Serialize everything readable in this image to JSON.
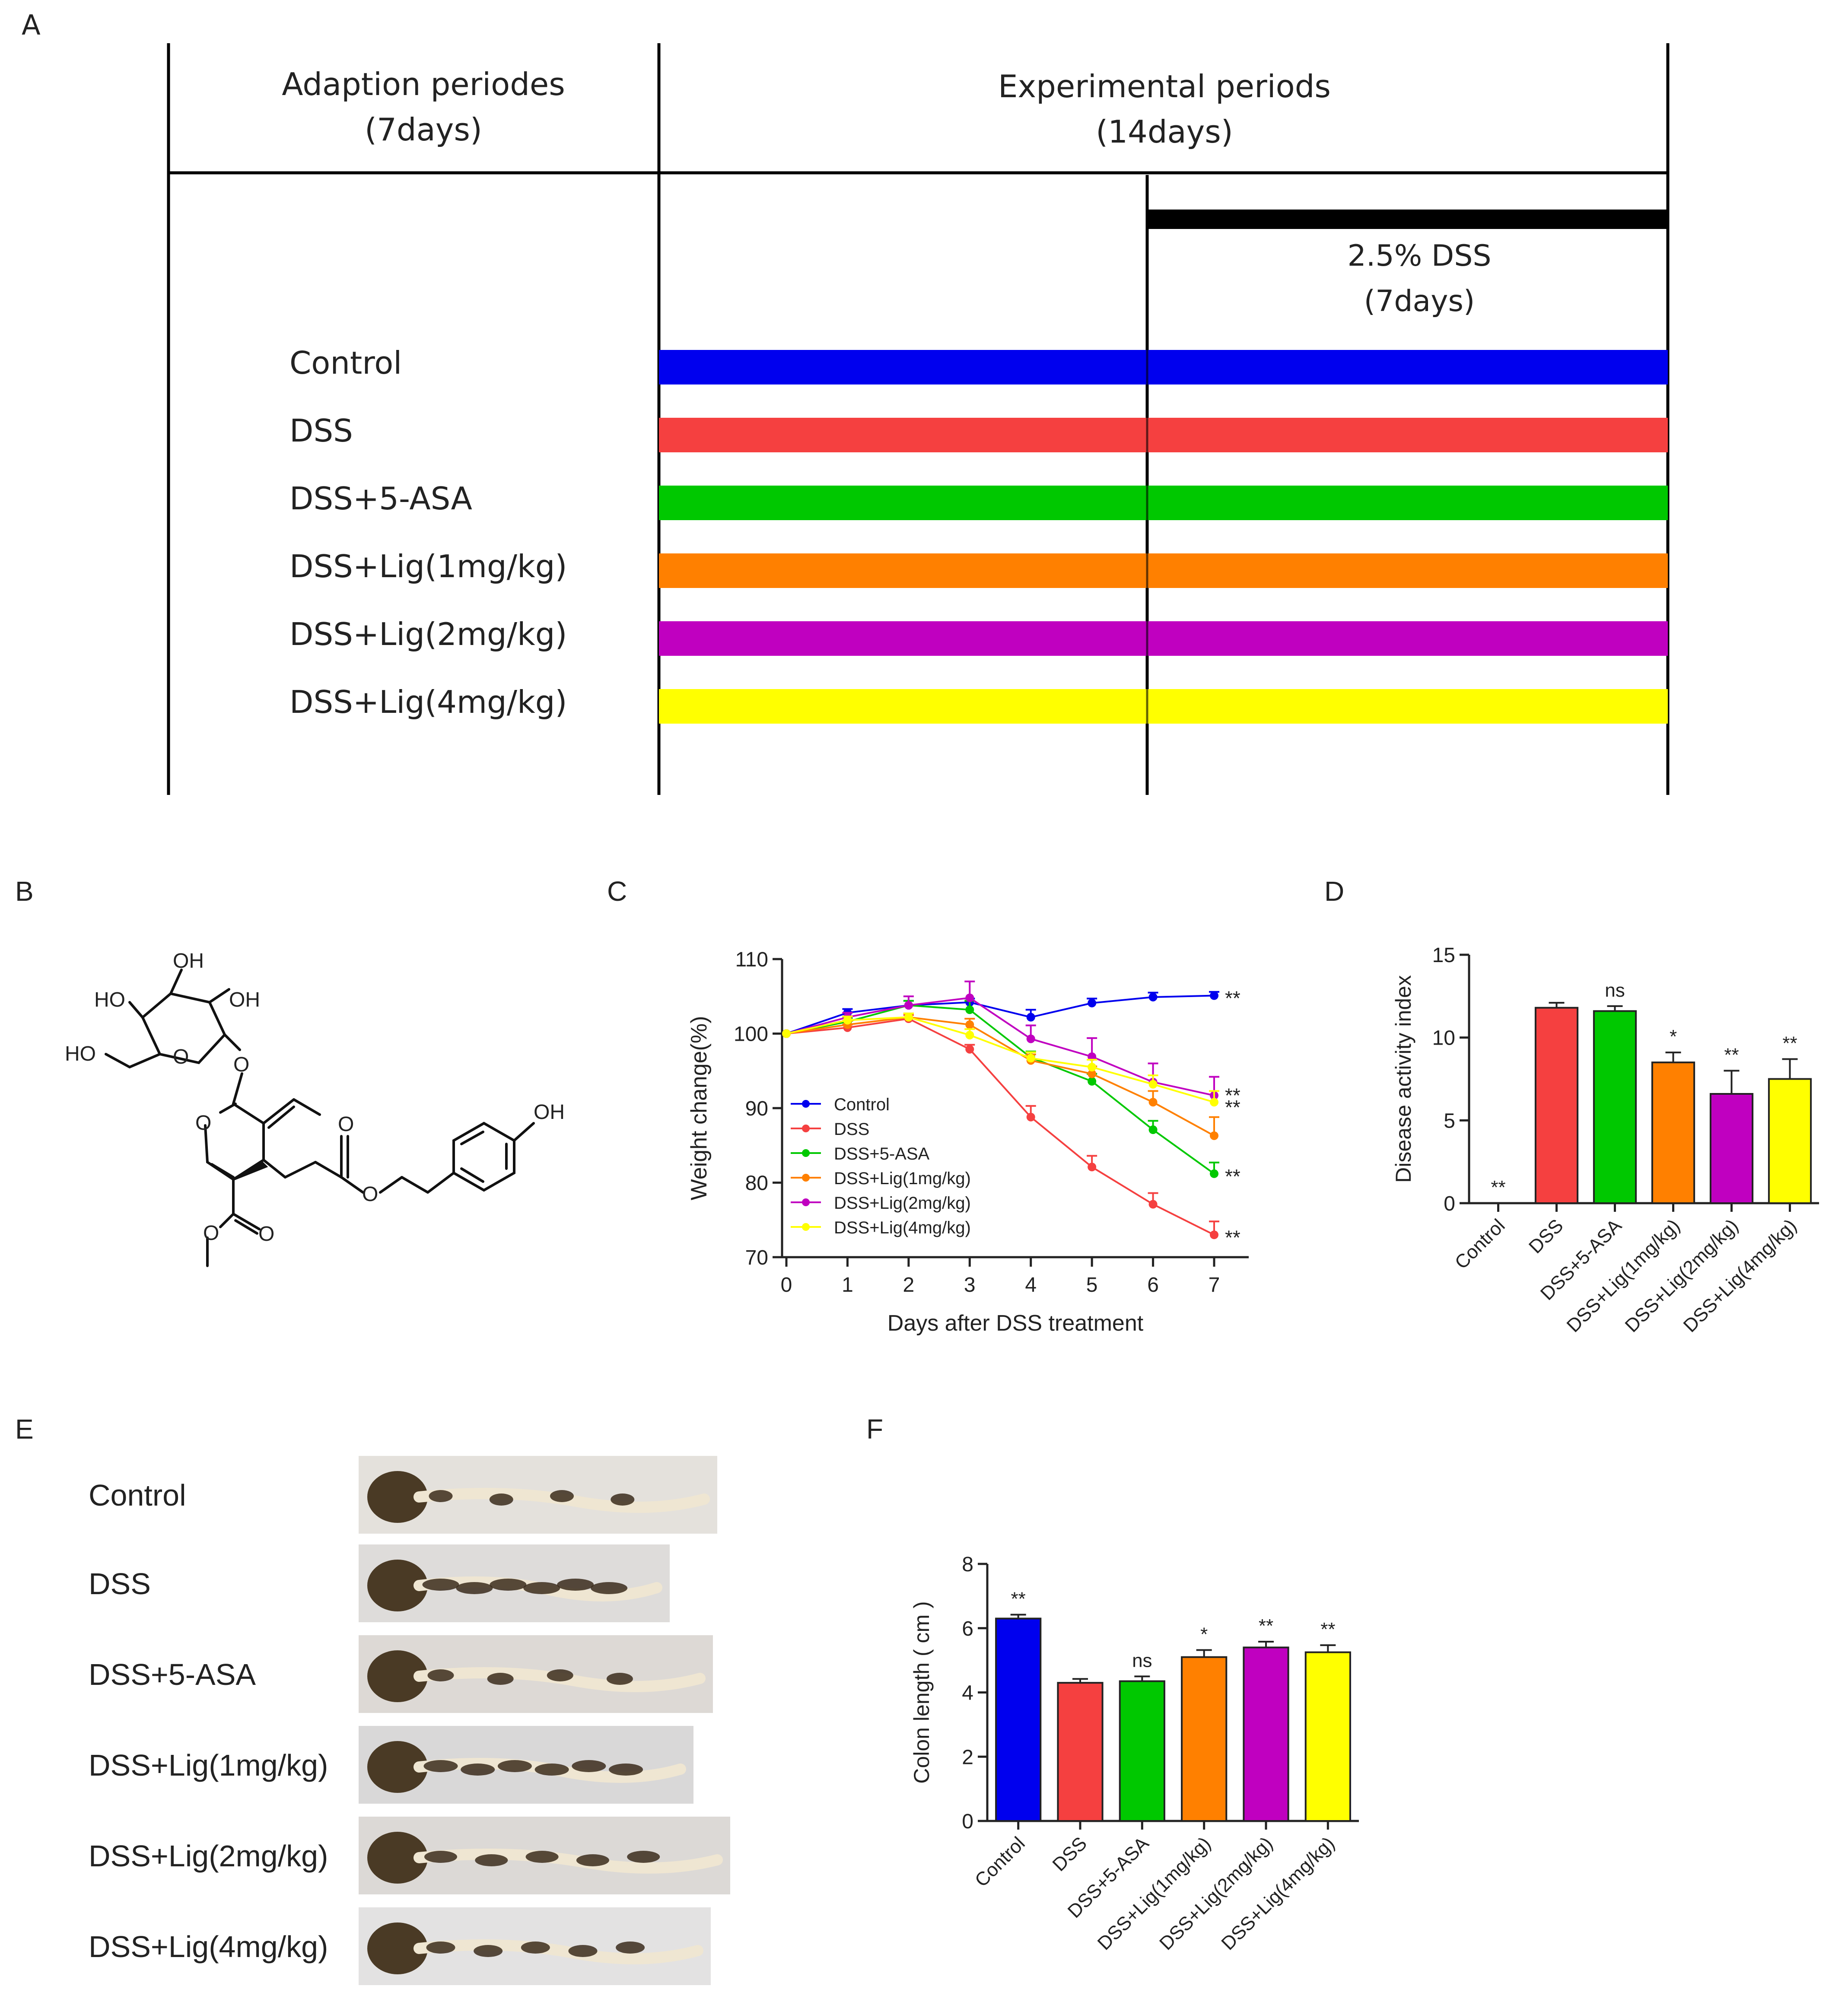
{
  "panel_letters": {
    "a": "A",
    "b": "B",
    "c": "C",
    "d": "D",
    "e": "E",
    "f": "F"
  },
  "colors": {
    "Control": "#0000ee",
    "DSS": "#f54040",
    "DSS+5-ASA": "#00c800",
    "DSS+Lig(1mg/kg)": "#ff8000",
    "DSS+Lig(2mg/kg)": "#c000c0",
    "DSS+Lig(4mg/kg)": "#ffff00",
    "dss_bar": "#000000"
  },
  "schema": {
    "adaption_line1": "Adaption periodes",
    "adaption_line2": "(7days)",
    "experimental_line1": "Experimental periods",
    "experimental_line2": "(14days)",
    "dss_line1": "2.5% DSS",
    "dss_line2": "(7days)",
    "groups": [
      "Control",
      "DSS",
      "DSS+5-ASA",
      "DSS+Lig(1mg/kg)",
      "DSS+Lig(2mg/kg)",
      "DSS+Lig(4mg/kg)"
    ]
  },
  "structure": {
    "labels": [
      "OH",
      "HO",
      "OH",
      "HO",
      "O",
      "O",
      "O",
      "O",
      "O",
      "OH",
      "O",
      "O"
    ]
  },
  "photos": {
    "labels": [
      "Control",
      "DSS",
      "DSS+5-ASA",
      "DSS+Lig(1mg/kg)",
      "DSS+Lig(2mg/kg)",
      "DSS+Lig(4mg/kg)"
    ]
  },
  "chart_data": [
    {
      "panel": "C",
      "type": "line",
      "xlabel": "Days after DSS treatment",
      "ylabel": "Weight change(%)",
      "x": [
        0,
        1,
        2,
        3,
        4,
        5,
        6,
        7
      ],
      "xlim": [
        0,
        7
      ],
      "ylim": [
        70,
        110
      ],
      "yticks": [
        70,
        80,
        90,
        100,
        110
      ],
      "legend": "center-left",
      "grid": false,
      "series": [
        {
          "name": "Control",
          "values": [
            100,
            102.8,
            103.8,
            104.2,
            102.2,
            104.1,
            104.9,
            105.1
          ],
          "errors": [
            0,
            0.5,
            0.6,
            0.5,
            1.0,
            0.6,
            0.6,
            0.5
          ],
          "sig": "**"
        },
        {
          "name": "DSS",
          "values": [
            100,
            100.8,
            102.0,
            97.9,
            88.8,
            82.1,
            77.1,
            73.0
          ],
          "errors": [
            0,
            0.4,
            0.5,
            0.6,
            1.5,
            1.5,
            1.5,
            1.8
          ],
          "sig": "**"
        },
        {
          "name": "DSS+5-ASA",
          "values": [
            100,
            101.6,
            103.8,
            103.2,
            96.8,
            93.6,
            87.1,
            81.2
          ],
          "errors": [
            0,
            0.5,
            0.6,
            1.2,
            0.8,
            1.0,
            1.2,
            1.5
          ],
          "sig": "**"
        },
        {
          "name": "DSS+Lig(1mg/kg)",
          "values": [
            100,
            101.2,
            102.2,
            101.2,
            96.4,
            94.6,
            90.8,
            86.3
          ],
          "errors": [
            0,
            0.5,
            0.5,
            0.8,
            0.8,
            1.0,
            1.5,
            2.5
          ],
          "sig": ""
        },
        {
          "name": "DSS+Lig(2mg/kg)",
          "values": [
            100,
            102.2,
            103.8,
            104.8,
            99.3,
            96.9,
            93.5,
            91.7
          ],
          "errors": [
            0,
            0.6,
            1.2,
            2.2,
            1.8,
            2.5,
            2.5,
            2.5
          ],
          "sig": "**"
        },
        {
          "name": "DSS+Lig(4mg/kg)",
          "values": [
            100,
            101.8,
            102.2,
            99.8,
            96.7,
            95.5,
            93.2,
            90.8
          ],
          "errors": [
            0,
            0.5,
            0.5,
            0.8,
            0.8,
            1.0,
            1.2,
            1.5
          ],
          "sig": "**"
        }
      ]
    },
    {
      "panel": "D",
      "type": "bar",
      "ylabel": "Disease activity index",
      "categories": [
        "Control",
        "DSS",
        "DSS+5-ASA",
        "DSS+Lig(1mg/kg)",
        "DSS+Lig(2mg/kg)",
        "DSS+Lig(4mg/kg)"
      ],
      "values": [
        0,
        11.8,
        11.6,
        8.5,
        6.6,
        7.5
      ],
      "errors": [
        0,
        0.3,
        0.3,
        0.6,
        1.4,
        1.2
      ],
      "sig": [
        "**",
        "",
        "ns",
        "*",
        "**",
        "**"
      ],
      "ylim": [
        0,
        15
      ],
      "yticks": [
        0,
        5,
        10,
        15
      ]
    },
    {
      "panel": "F",
      "type": "bar",
      "ylabel": "Colon length ( cm )",
      "categories": [
        "Control",
        "DSS",
        "DSS+5-ASA",
        "DSS+Lig(1mg/kg)",
        "DSS+Lig(2mg/kg)",
        "DSS+Lig(4mg/kg)"
      ],
      "values": [
        6.3,
        4.3,
        4.35,
        5.1,
        5.4,
        5.25
      ],
      "errors": [
        0.12,
        0.12,
        0.15,
        0.22,
        0.18,
        0.22
      ],
      "sig": [
        "**",
        "",
        "ns",
        "*",
        "**",
        "**"
      ],
      "ylim": [
        0,
        8
      ],
      "yticks": [
        0,
        2,
        4,
        6,
        8
      ]
    }
  ]
}
